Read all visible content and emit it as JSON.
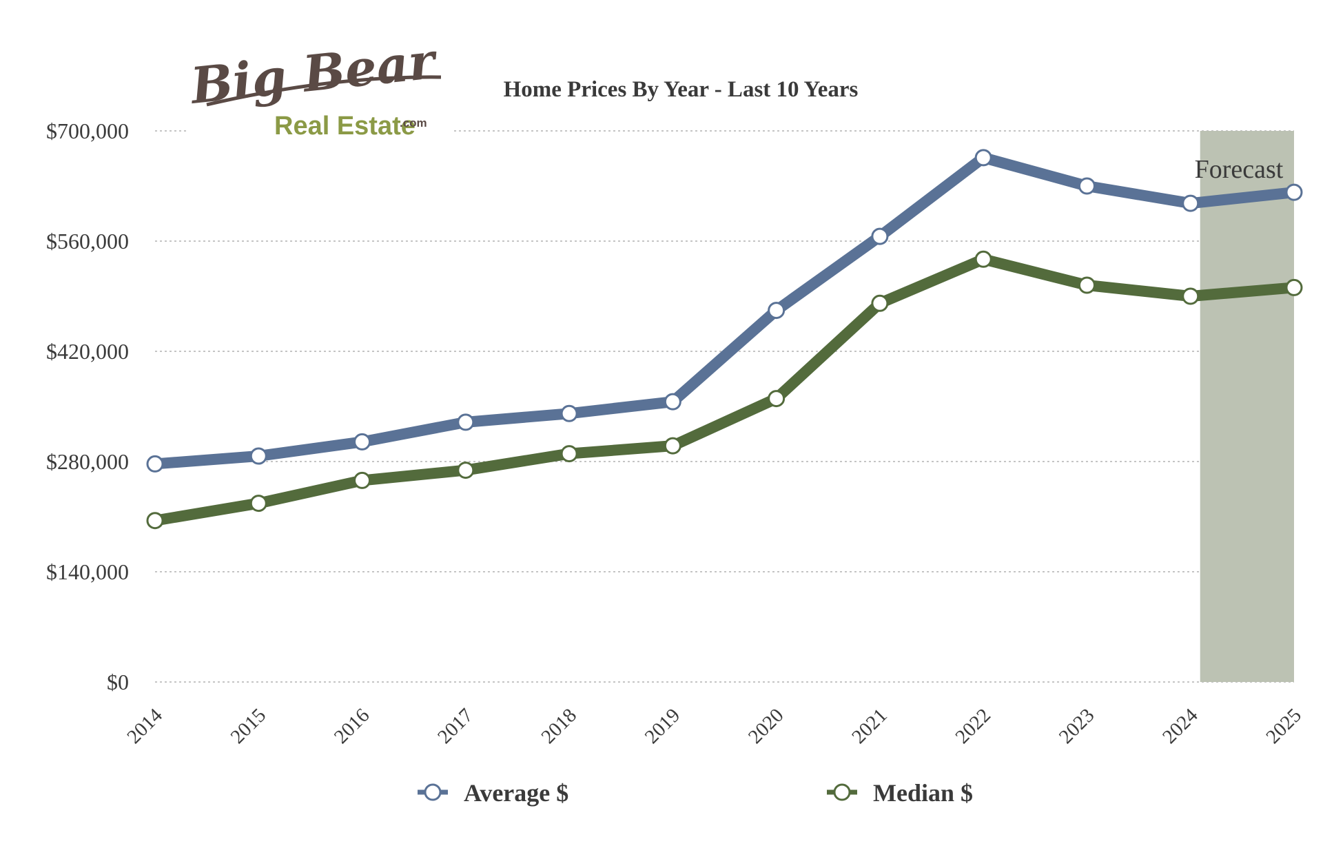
{
  "logo": {
    "line1": "Big Bear",
    "line2": "Real Estate",
    "suffix": ".com",
    "colors": {
      "dark": "#5a4a45",
      "green": "#8b9a46"
    }
  },
  "forecast_label": "Forecast",
  "colors": {
    "average": "#5a7296",
    "median": "#536b3c",
    "forecast_band": "#bcc2b3",
    "grid": "#b0b0b0",
    "text": "#3a3a3a"
  },
  "chart_data": {
    "type": "line",
    "title": "Home Prices By Year - Last 10 Years",
    "xlabel": "",
    "ylabel": "",
    "categories": [
      "2014",
      "2015",
      "2016",
      "2017",
      "2018",
      "2019",
      "2020",
      "2021",
      "2022",
      "2023",
      "2024",
      "2025"
    ],
    "series": [
      {
        "name": "Average $",
        "values": [
          277000,
          287000,
          305000,
          330000,
          341000,
          356000,
          472000,
          566000,
          666000,
          630000,
          608000,
          622000
        ]
      },
      {
        "name": "Median $",
        "values": [
          205000,
          227000,
          256000,
          269000,
          290000,
          300000,
          360000,
          481000,
          537000,
          504000,
          490000,
          501000
        ]
      }
    ],
    "ylim": [
      0,
      700000
    ],
    "yticks": [
      0,
      140000,
      280000,
      420000,
      560000,
      700000
    ],
    "ytick_labels": [
      "$0",
      "$140,000",
      "$280,000",
      "$420,000",
      "$560,000",
      "$700,000"
    ],
    "forecast_range": [
      "2024",
      "2025"
    ],
    "grid": true,
    "legend_position": "bottom"
  }
}
